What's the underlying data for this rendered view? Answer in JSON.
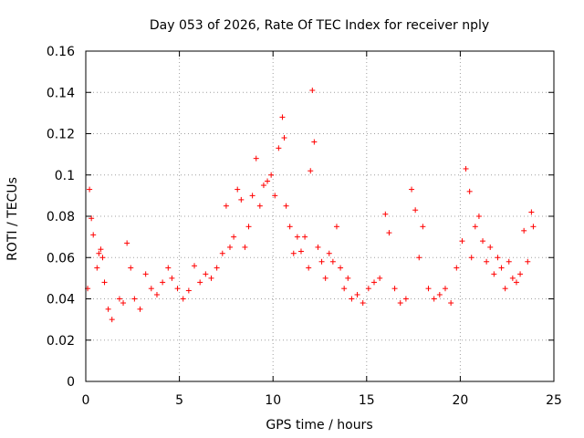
{
  "chart_data": {
    "type": "scatter",
    "title": "Day 053 of 2026, Rate Of TEC Index for receiver nply",
    "xlabel": "GPS time / hours",
    "ylabel": "ROTI / TECUs",
    "xlim": [
      0,
      25
    ],
    "ylim": [
      0,
      0.16
    ],
    "xticks": [
      "0",
      "5",
      "10",
      "15",
      "20",
      "25"
    ],
    "yticks": [
      "0",
      "0.02",
      "0.04",
      "0.06",
      "0.08",
      "0.1",
      "0.12",
      "0.14",
      "0.16"
    ],
    "grid": true,
    "marker": "plus",
    "color": "#ff0000",
    "series": [
      {
        "x": [
          0.1,
          0.2,
          0.3,
          0.4,
          0.6,
          0.7,
          0.8,
          0.9,
          1.0,
          1.2,
          1.4,
          1.8,
          2.0,
          2.2,
          2.4,
          2.6,
          2.9,
          3.2,
          3.5,
          3.8,
          4.1,
          4.4,
          4.6,
          4.9,
          5.2,
          5.5,
          5.8,
          6.1,
          6.4,
          6.7,
          7.0,
          7.3,
          7.5,
          7.7,
          7.9,
          8.1,
          8.3,
          8.5,
          8.7,
          8.9,
          9.1,
          9.3,
          9.5,
          9.7,
          9.9,
          10.1,
          10.3,
          10.5,
          10.6,
          10.7,
          10.9,
          11.1,
          11.3,
          11.5,
          11.7,
          11.9,
          12.0,
          12.1,
          12.2,
          12.4,
          12.6,
          12.8,
          13.0,
          13.2,
          13.4,
          13.6,
          13.8,
          14.0,
          14.2,
          14.5,
          14.8,
          15.1,
          15.4,
          15.7,
          16.0,
          16.2,
          16.5,
          16.8,
          17.1,
          17.4,
          17.6,
          17.8,
          18.0,
          18.3,
          18.6,
          18.9,
          19.2,
          19.5,
          19.8,
          20.1,
          20.3,
          20.5,
          20.6,
          20.8,
          21.0,
          21.2,
          21.4,
          21.6,
          21.8,
          22.0,
          22.2,
          22.4,
          22.6,
          22.8,
          23.0,
          23.2,
          23.4,
          23.6,
          23.8,
          23.9
        ],
        "y": [
          0.045,
          0.093,
          0.079,
          0.071,
          0.055,
          0.062,
          0.064,
          0.06,
          0.048,
          0.035,
          0.03,
          0.04,
          0.038,
          0.067,
          0.055,
          0.04,
          0.035,
          0.052,
          0.045,
          0.042,
          0.048,
          0.055,
          0.05,
          0.045,
          0.04,
          0.044,
          0.056,
          0.048,
          0.052,
          0.05,
          0.055,
          0.062,
          0.085,
          0.065,
          0.07,
          0.093,
          0.088,
          0.065,
          0.075,
          0.09,
          0.108,
          0.085,
          0.095,
          0.097,
          0.1,
          0.09,
          0.113,
          0.128,
          0.118,
          0.085,
          0.075,
          0.062,
          0.07,
          0.063,
          0.07,
          0.055,
          0.102,
          0.141,
          0.116,
          0.065,
          0.058,
          0.05,
          0.062,
          0.058,
          0.075,
          0.055,
          0.045,
          0.05,
          0.04,
          0.042,
          0.038,
          0.045,
          0.048,
          0.05,
          0.081,
          0.072,
          0.045,
          0.038,
          0.04,
          0.093,
          0.083,
          0.06,
          0.075,
          0.045,
          0.04,
          0.042,
          0.045,
          0.038,
          0.055,
          0.068,
          0.103,
          0.092,
          0.06,
          0.075,
          0.08,
          0.068,
          0.058,
          0.065,
          0.052,
          0.06,
          0.055,
          0.045,
          0.058,
          0.05,
          0.048,
          0.052,
          0.073,
          0.058,
          0.082,
          0.075
        ]
      }
    ]
  },
  "colors": {
    "marker": "#ff0000",
    "grid": "#a0a0a0",
    "axis": "#000000",
    "background": "#ffffff"
  }
}
